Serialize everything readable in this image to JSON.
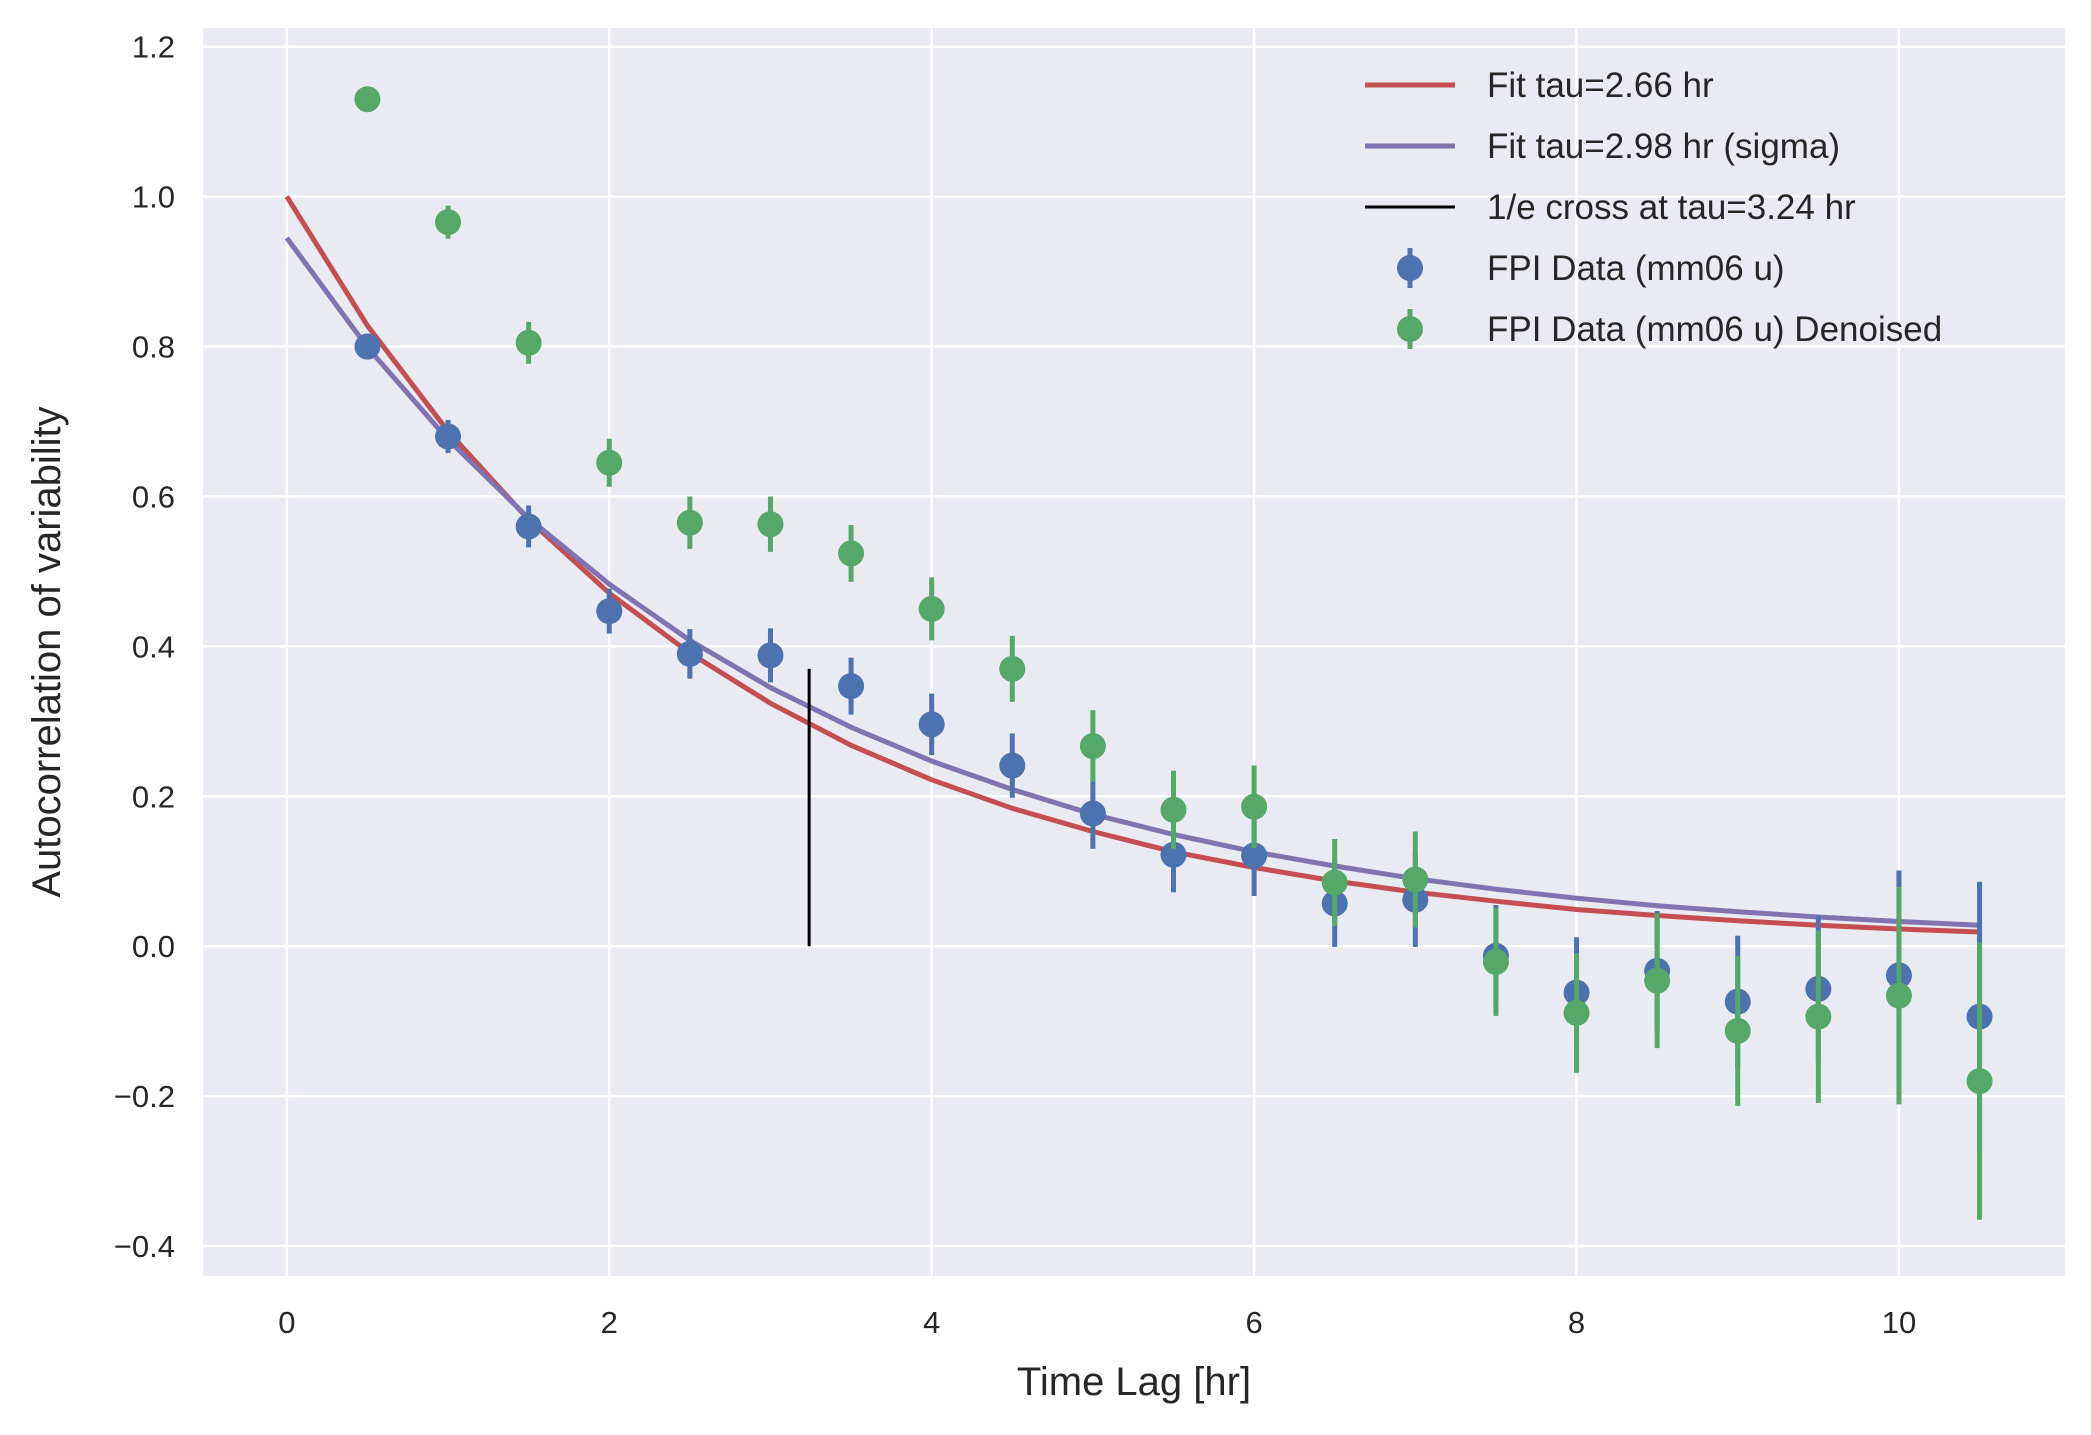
{
  "chart_data": {
    "type": "scatter",
    "title": "",
    "xlabel": "Time Lag [hr]",
    "ylabel": "Autocorrelation of variability",
    "xlim": [
      -0.52,
      11.03
    ],
    "ylim": [
      -0.44,
      1.225
    ],
    "xticks": [
      0,
      2,
      4,
      6,
      8,
      10
    ],
    "xtick_labels": [
      "0",
      "2",
      "4",
      "6",
      "8",
      "10"
    ],
    "yticks": [
      -0.4,
      -0.2,
      0.0,
      0.2,
      0.4,
      0.6,
      0.8,
      1.0,
      1.2
    ],
    "ytick_labels": [
      "−0.4",
      "−0.2",
      "0.0",
      "0.2",
      "0.4",
      "0.6",
      "0.8",
      "1.0",
      "1.2"
    ],
    "grid": true,
    "legend_position": "top-right",
    "colors": {
      "background": "#EAEAF2",
      "grid": "#FFFFFF",
      "fit_red": "#C44E52",
      "fit_purple": "#8172B2",
      "cross_line": "#000000",
      "data_blue": "#4C72B0",
      "data_green": "#55A868"
    },
    "series": [
      {
        "name": "Fit tau=2.66 hr",
        "kind": "line",
        "color": "#C44E52",
        "x": [
          0,
          0.5,
          1,
          1.5,
          2,
          2.5,
          3,
          3.5,
          4,
          4.5,
          5,
          5.5,
          6,
          6.5,
          7,
          7.5,
          8,
          8.5,
          9,
          9.5,
          10,
          10.5
        ],
        "y": [
          1.0,
          0.828,
          0.687,
          0.569,
          0.471,
          0.391,
          0.324,
          0.268,
          0.222,
          0.184,
          0.153,
          0.126,
          0.105,
          0.087,
          0.072,
          0.06,
          0.049,
          0.041,
          0.034,
          0.028,
          0.023,
          0.019
        ]
      },
      {
        "name": "Fit tau=2.98 hr (sigma)",
        "kind": "line",
        "color": "#8172B2",
        "x": [
          0,
          0.5,
          1,
          1.5,
          2,
          2.5,
          3,
          3.5,
          4,
          4.5,
          5,
          5.5,
          6,
          6.5,
          7,
          7.5,
          8,
          8.5,
          9,
          9.5,
          10,
          10.5
        ],
        "y": [
          0.945,
          0.799,
          0.676,
          0.571,
          0.483,
          0.408,
          0.345,
          0.292,
          0.247,
          0.209,
          0.176,
          0.149,
          0.126,
          0.107,
          0.09,
          0.076,
          0.064,
          0.054,
          0.046,
          0.039,
          0.033,
          0.028
        ]
      },
      {
        "name": "1/e cross at tau=3.24 hr",
        "kind": "vline",
        "color": "#000000",
        "x": 3.24,
        "y_range": [
          0.0,
          0.37
        ]
      },
      {
        "name": "FPI Data (mm06 u)",
        "kind": "errorbar",
        "color": "#4C72B0",
        "x": [
          0.5,
          1,
          1.5,
          2,
          2.5,
          3,
          3.5,
          4,
          4.5,
          5,
          5.5,
          6,
          6.5,
          7,
          7.5,
          8,
          8.5,
          9,
          9.5,
          10,
          10.5
        ],
        "y": [
          0.8,
          0.68,
          0.56,
          0.447,
          0.39,
          0.388,
          0.347,
          0.296,
          0.241,
          0.177,
          0.122,
          0.121,
          0.057,
          0.062,
          -0.013,
          -0.062,
          -0.033,
          -0.074,
          -0.057,
          -0.039,
          -0.094
        ],
        "err": [
          0.015,
          0.022,
          0.028,
          0.03,
          0.033,
          0.036,
          0.038,
          0.041,
          0.043,
          0.047,
          0.05,
          0.054,
          0.058,
          0.063,
          0.068,
          0.074,
          0.08,
          0.088,
          0.098,
          0.14,
          0.18
        ]
      },
      {
        "name": "FPI Data (mm06 u) Denoised",
        "kind": "errorbar",
        "color": "#55A868",
        "x": [
          0.5,
          1,
          1.5,
          2,
          2.5,
          3,
          3.5,
          4,
          4.5,
          5,
          5.5,
          6,
          6.5,
          7,
          7.5,
          8,
          8.5,
          9,
          9.5,
          10,
          10.5
        ],
        "y": [
          1.13,
          0.966,
          0.805,
          0.645,
          0.565,
          0.563,
          0.524,
          0.45,
          0.37,
          0.267,
          0.182,
          0.186,
          0.085,
          0.089,
          -0.021,
          -0.089,
          -0.046,
          -0.113,
          -0.094,
          -0.066,
          -0.18
        ],
        "err": [
          0.01,
          0.022,
          0.028,
          0.032,
          0.035,
          0.037,
          0.038,
          0.042,
          0.044,
          0.048,
          0.052,
          0.055,
          0.058,
          0.064,
          0.072,
          0.08,
          0.09,
          0.1,
          0.115,
          0.145,
          0.185
        ]
      }
    ]
  }
}
